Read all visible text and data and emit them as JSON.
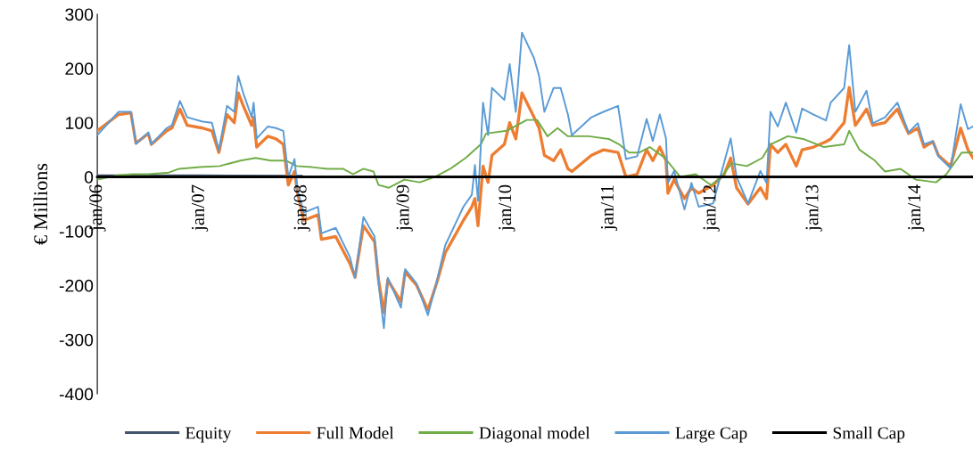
{
  "chart_data": {
    "type": "line",
    "ylabel": "€ Millions",
    "xlim": [
      "2006-01-01",
      "2014-07-24"
    ],
    "ylim": [
      -400,
      300
    ],
    "xticks": [
      {
        "value": "2006-01-01",
        "label": "jan/06"
      },
      {
        "value": "2007-01-01",
        "label": "jan/07"
      },
      {
        "value": "2008-01-01",
        "label": "jan/08"
      },
      {
        "value": "2009-01-01",
        "label": "jan/09"
      },
      {
        "value": "2010-01-01",
        "label": "jan/10"
      },
      {
        "value": "2011-01-01",
        "label": "jan/11"
      },
      {
        "value": "2012-01-01",
        "label": "jan/12"
      },
      {
        "value": "2013-01-01",
        "label": "jan/13"
      },
      {
        "value": "2014-01-01",
        "label": "jan/14"
      }
    ],
    "yticks": [
      -400,
      -300,
      -200,
      -100,
      0,
      100,
      200,
      300
    ],
    "grid": false,
    "legend": "bottom",
    "marker": "none",
    "line_style": "solid",
    "series": [
      {
        "name": "Equity",
        "color": "#44546a",
        "x": [
          "2006-01-01",
          "2007-01-01",
          "2008-01-01"
        ],
        "values": [
          3,
          3,
          2
        ]
      },
      {
        "name": "Full Model",
        "color": "#ed7d31",
        "x": [
          "2006-01-01",
          "2006-03-18",
          "2006-05-01",
          "2006-05-19",
          "2006-07-02",
          "2006-07-13",
          "2006-09-06",
          "2006-09-24",
          "2006-10-23",
          "2006-11-18",
          "2007-01-12",
          "2007-02-14",
          "2007-03-11",
          "2007-04-09",
          "2007-05-05",
          "2007-05-19",
          "2007-06-07",
          "2007-07-06",
          "2007-07-13",
          "2007-07-24",
          "2007-09-02",
          "2007-10-01",
          "2007-10-27",
          "2007-11-14",
          "2007-12-06",
          "2007-12-17",
          "2008-01-08",
          "2008-02-28",
          "2008-03-11",
          "2008-05-01",
          "2008-06-21",
          "2008-07-09",
          "2008-08-08",
          "2008-09-17",
          "2008-10-01",
          "2008-10-20",
          "2008-11-03",
          "2008-12-20",
          "2009-01-04",
          "2009-02-14",
          "2009-03-26",
          "2009-04-27",
          "2009-05-27",
          "2009-07-31",
          "2009-08-30",
          "2009-09-10",
          "2009-09-21",
          "2009-10-09",
          "2009-10-27",
          "2009-11-10",
          "2009-12-24",
          "2010-01-12",
          "2010-02-03",
          "2010-02-25",
          "2010-04-09",
          "2010-04-27",
          "2010-05-16",
          "2010-06-18",
          "2010-07-13",
          "2010-08-08",
          "2010-08-22",
          "2010-10-31",
          "2010-12-13",
          "2011-02-03",
          "2011-03-03",
          "2011-04-12",
          "2011-05-16",
          "2011-06-07",
          "2011-07-02",
          "2011-07-24",
          "2011-07-31",
          "2011-08-22",
          "2011-09-28",
          "2011-10-23",
          "2011-11-18",
          "2012-01-08",
          "2012-02-17",
          "2012-03-11",
          "2012-04-01",
          "2012-05-12",
          "2012-06-25",
          "2012-07-17",
          "2012-07-31",
          "2012-08-26",
          "2012-09-24",
          "2012-10-31",
          "2012-11-21",
          "2013-01-01",
          "2013-02-14",
          "2013-03-03",
          "2013-04-20",
          "2013-05-08",
          "2013-05-30",
          "2013-07-09",
          "2013-07-31",
          "2013-09-13",
          "2013-10-27",
          "2013-12-06",
          "2014-01-08",
          "2014-01-30",
          "2014-03-03",
          "2014-03-22",
          "2014-05-05",
          "2014-06-10",
          "2014-07-06",
          "2014-07-24"
        ],
        "values": [
          85,
          115,
          118,
          62,
          80,
          60,
          85,
          90,
          125,
          95,
          90,
          85,
          45,
          115,
          100,
          155,
          130,
          95,
          110,
          55,
          75,
          70,
          60,
          -15,
          10,
          -30,
          -80,
          -70,
          -115,
          -110,
          -160,
          -185,
          -90,
          -120,
          -190,
          -250,
          -190,
          -230,
          -175,
          -200,
          -245,
          -195,
          -140,
          -80,
          -55,
          -40,
          -90,
          20,
          -10,
          40,
          60,
          100,
          70,
          155,
          110,
          90,
          40,
          30,
          50,
          15,
          10,
          40,
          50,
          45,
          0,
          5,
          50,
          30,
          55,
          30,
          -30,
          -5,
          -40,
          -20,
          -30,
          -15,
          5,
          35,
          -20,
          -50,
          -20,
          -40,
          60,
          45,
          60,
          20,
          50,
          55,
          65,
          70,
          100,
          165,
          95,
          125,
          95,
          100,
          125,
          80,
          90,
          55,
          65,
          40,
          20,
          90,
          50,
          35
        ]
      },
      {
        "name": "Diagonal model",
        "color": "#70ad47",
        "x": [
          "2006-01-01",
          "2006-03-14",
          "2006-05-08",
          "2006-07-02",
          "2006-09-13",
          "2006-10-20",
          "2007-01-01",
          "2007-03-14",
          "2007-05-27",
          "2007-07-20",
          "2007-09-13",
          "2007-11-07",
          "2007-12-13",
          "2008-02-07",
          "2008-04-01",
          "2008-05-27",
          "2008-07-02",
          "2008-08-08",
          "2008-09-13",
          "2008-10-01",
          "2008-11-07",
          "2009-01-01",
          "2009-02-25",
          "2009-04-20",
          "2009-06-14",
          "2009-08-08",
          "2009-10-01",
          "2009-10-20",
          "2010-01-01",
          "2010-02-07",
          "2010-03-14",
          "2010-04-20",
          "2010-05-27",
          "2010-07-02",
          "2010-08-08",
          "2010-10-20",
          "2011-01-01",
          "2011-02-07",
          "2011-03-14",
          "2011-04-20",
          "2011-05-27",
          "2011-07-20",
          "2011-09-13",
          "2011-11-07",
          "2012-01-01",
          "2012-02-07",
          "2012-03-14",
          "2012-05-08",
          "2012-07-02",
          "2012-07-31",
          "2012-10-01",
          "2012-11-25",
          "2013-02-07",
          "2013-04-20",
          "2013-05-08",
          "2013-06-14",
          "2013-08-08",
          "2013-09-13",
          "2013-11-07",
          "2014-01-01",
          "2014-03-14",
          "2014-04-20",
          "2014-06-14",
          "2014-07-24"
        ],
        "values": [
          -5,
          3,
          5,
          5,
          8,
          15,
          18,
          20,
          30,
          35,
          30,
          30,
          20,
          18,
          15,
          15,
          5,
          15,
          10,
          -15,
          -20,
          -5,
          -10,
          0,
          15,
          35,
          60,
          80,
          85,
          95,
          105,
          105,
          75,
          90,
          75,
          75,
          70,
          60,
          45,
          45,
          55,
          35,
          0,
          5,
          -15,
          0,
          25,
          20,
          35,
          60,
          75,
          70,
          55,
          60,
          85,
          50,
          30,
          10,
          15,
          -5,
          -10,
          5,
          45,
          45
        ]
      },
      {
        "name": "Large Cap",
        "color": "#5b9bd5",
        "x": [
          "2006-01-01",
          "2006-03-18",
          "2006-05-01",
          "2006-05-19",
          "2006-07-02",
          "2006-07-13",
          "2006-09-06",
          "2006-09-24",
          "2006-10-23",
          "2006-11-18",
          "2007-01-12",
          "2007-02-14",
          "2007-03-11",
          "2007-04-09",
          "2007-05-05",
          "2007-05-19",
          "2007-06-07",
          "2007-07-06",
          "2007-07-13",
          "2007-07-24",
          "2007-09-02",
          "2007-10-01",
          "2007-10-27",
          "2007-11-14",
          "2007-12-06",
          "2007-12-17",
          "2008-01-08",
          "2008-02-28",
          "2008-03-11",
          "2008-05-01",
          "2008-06-21",
          "2008-07-09",
          "2008-08-08",
          "2008-09-17",
          "2008-10-01",
          "2008-10-20",
          "2008-11-03",
          "2008-12-20",
          "2009-01-04",
          "2009-02-14",
          "2009-03-26",
          "2009-04-27",
          "2009-05-27",
          "2009-07-31",
          "2009-08-30",
          "2009-09-10",
          "2009-09-21",
          "2009-10-09",
          "2009-10-27",
          "2009-11-10",
          "2009-12-24",
          "2010-01-12",
          "2010-02-03",
          "2010-02-25",
          "2010-04-09",
          "2010-04-27",
          "2010-05-16",
          "2010-06-18",
          "2010-07-13",
          "2010-08-08",
          "2010-08-22",
          "2010-10-31",
          "2010-12-13",
          "2011-02-03",
          "2011-03-03",
          "2011-04-12",
          "2011-05-16",
          "2011-06-07",
          "2011-07-02",
          "2011-07-24",
          "2011-07-31",
          "2011-08-22",
          "2011-09-28",
          "2011-10-23",
          "2011-11-18",
          "2012-01-08",
          "2012-02-17",
          "2012-03-11",
          "2012-04-01",
          "2012-05-12",
          "2012-06-25",
          "2012-07-17",
          "2012-07-31",
          "2012-08-26",
          "2012-09-24",
          "2012-10-31",
          "2012-11-21",
          "2013-01-01",
          "2013-02-14",
          "2013-03-03",
          "2013-04-20",
          "2013-05-08",
          "2013-05-30",
          "2013-07-09",
          "2013-07-31",
          "2013-09-13",
          "2013-10-27",
          "2013-12-06",
          "2014-01-08",
          "2014-01-30",
          "2014-03-03",
          "2014-03-22",
          "2014-05-05",
          "2014-06-10",
          "2014-07-06",
          "2014-07-24"
        ],
        "values": [
          77,
          120,
          120,
          61,
          82,
          60,
          90,
          95,
          140,
          110,
          102,
          100,
          49,
          131,
          120,
          186,
          153,
          110,
          137,
          71,
          93,
          90,
          85,
          0,
          33,
          -25,
          -66,
          -55,
          -104,
          -94,
          -148,
          -186,
          -74,
          -110,
          -197,
          -279,
          -186,
          -241,
          -170,
          -197,
          -255,
          -192,
          -126,
          -55,
          -33,
          22,
          -44,
          137,
          77,
          164,
          142,
          208,
          120,
          266,
          219,
          186,
          120,
          164,
          164,
          115,
          77,
          110,
          120,
          131,
          33,
          38,
          107,
          66,
          115,
          71,
          -11,
          11,
          -60,
          -11,
          -55,
          -49,
          27,
          71,
          0,
          -49,
          11,
          -11,
          120,
          93,
          137,
          82,
          126,
          115,
          104,
          137,
          164,
          243,
          120,
          159,
          99,
          110,
          137,
          82,
          99,
          60,
          66,
          38,
          16,
          134,
          88,
          93
        ]
      },
      {
        "name": "Small Cap",
        "color": "#000000",
        "x": [
          "2006-01-01",
          "2008-01-01",
          "2010-01-01",
          "2012-01-01",
          "2014-07-24"
        ],
        "values": [
          0,
          0,
          0,
          0,
          0
        ]
      }
    ]
  }
}
